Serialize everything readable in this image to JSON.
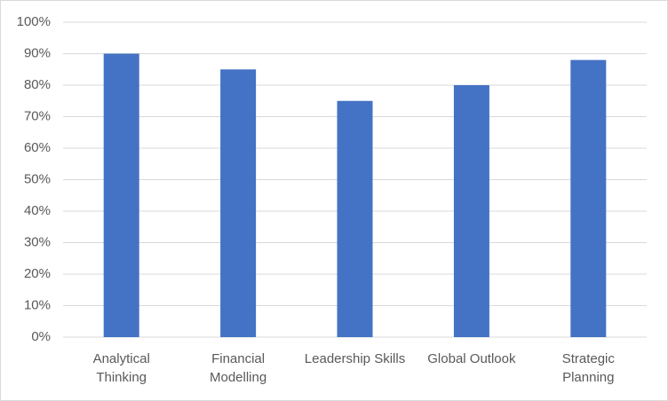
{
  "chart_data": {
    "type": "bar",
    "categories": [
      "Analytical Thinking",
      "Financial Modelling",
      "Leadership Skills",
      "Global Outlook",
      "Strategic Planning"
    ],
    "values": [
      90,
      85,
      75,
      80,
      88
    ],
    "color": "#4472c4",
    "ylim": [
      0,
      100
    ],
    "yticks": [
      {
        "value": 0,
        "label": "0%"
      },
      {
        "value": 10,
        "label": "10%"
      },
      {
        "value": 20,
        "label": "20%"
      },
      {
        "value": 30,
        "label": "30%"
      },
      {
        "value": 40,
        "label": "40%"
      },
      {
        "value": 50,
        "label": "50%"
      },
      {
        "value": 60,
        "label": "60%"
      },
      {
        "value": 70,
        "label": "70%"
      },
      {
        "value": 80,
        "label": "80%"
      },
      {
        "value": 90,
        "label": "90%"
      },
      {
        "value": 100,
        "label": "100%"
      }
    ],
    "grid": true
  }
}
